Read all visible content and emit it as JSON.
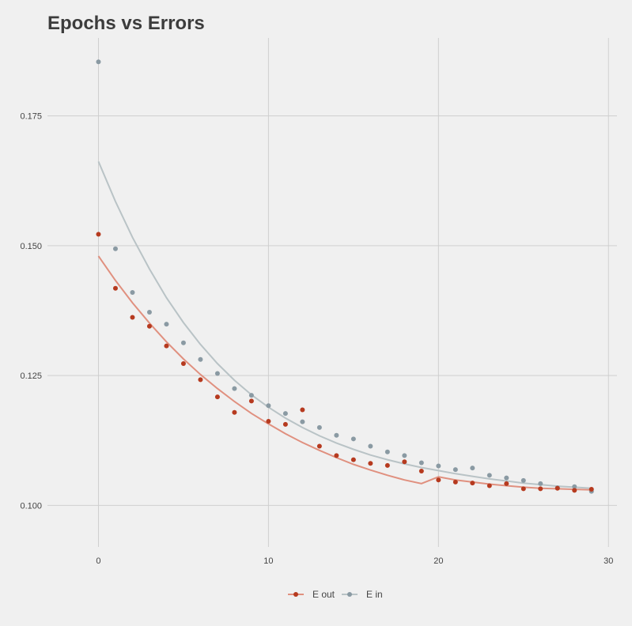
{
  "chart_data": {
    "type": "scatter",
    "title": "Epochs vs Errors",
    "xlabel": "",
    "ylabel": "",
    "xlim": [
      -3,
      30.5
    ],
    "ylim": [
      0.092,
      0.19
    ],
    "x_ticks": [
      0,
      10,
      20,
      30
    ],
    "y_ticks": [
      0.1,
      0.125,
      0.15,
      0.175
    ],
    "y_tick_labels": [
      "0.100",
      "0.125",
      "0.150",
      "0.175"
    ],
    "grid": true,
    "legend_position": "bottom",
    "x": [
      0,
      1,
      2,
      3,
      4,
      5,
      6,
      7,
      8,
      9,
      10,
      11,
      12,
      13,
      14,
      15,
      16,
      17,
      18,
      19,
      20,
      21,
      22,
      23,
      24,
      25,
      26,
      27,
      28,
      29
    ],
    "series": [
      {
        "name": "E out",
        "color": "#b63a1f",
        "line_color": "#e0907f",
        "values": [
          0.1522,
          0.1418,
          0.1362,
          0.1345,
          0.1307,
          0.1273,
          0.1242,
          0.1209,
          0.1179,
          0.1201,
          0.1162,
          0.1156,
          0.1184,
          0.1114,
          0.1096,
          0.1088,
          0.1081,
          0.1077,
          0.1084,
          0.1066,
          0.1049,
          0.1045,
          0.1043,
          0.1038,
          0.1042,
          0.1032,
          0.1032,
          0.1033,
          0.1029,
          0.1031
        ],
        "trend": [
          0.148,
          0.1433,
          0.139,
          0.1351,
          0.1315,
          0.1282,
          0.1252,
          0.1225,
          0.12,
          0.1177,
          0.1157,
          0.1138,
          0.1121,
          0.1106,
          0.1092,
          0.1079,
          0.1068,
          0.1058,
          0.1049,
          0.1042,
          0.1055,
          0.1049,
          0.1045,
          0.1041,
          0.1038,
          0.1035,
          0.1033,
          0.1032,
          0.1031,
          0.103
        ]
      },
      {
        "name": "E in",
        "color": "#8a9aa3",
        "line_color": "#b9c3c6",
        "values": [
          0.1854,
          0.1494,
          0.141,
          0.1372,
          0.1349,
          0.1313,
          0.1281,
          0.1254,
          0.1225,
          0.1212,
          0.1192,
          0.1177,
          0.1161,
          0.115,
          0.1135,
          0.1128,
          0.1114,
          0.1103,
          0.1096,
          0.1082,
          0.1076,
          0.1069,
          0.1072,
          0.1058,
          0.1053,
          0.1048,
          0.1042,
          0.1034,
          0.1036,
          0.1027
        ],
        "trend": [
          0.1662,
          0.1585,
          0.1516,
          0.1455,
          0.14,
          0.1352,
          0.131,
          0.1273,
          0.1241,
          0.1213,
          0.1189,
          0.1168,
          0.115,
          0.1134,
          0.112,
          0.1108,
          0.1097,
          0.1088,
          0.108,
          0.1073,
          0.1067,
          0.1061,
          0.1056,
          0.1051,
          0.1047,
          0.1043,
          0.104,
          0.1037,
          0.1035,
          0.1033
        ]
      }
    ]
  }
}
